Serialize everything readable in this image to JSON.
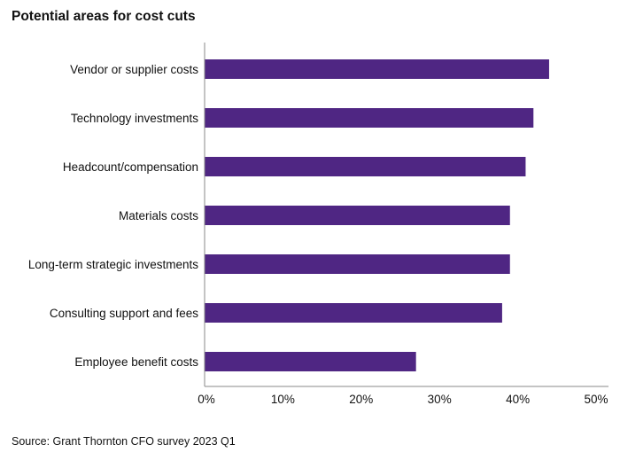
{
  "chart_data": {
    "type": "bar",
    "orientation": "horizontal",
    "title": "Potential areas for cost cuts",
    "categories": [
      "Vendor or supplier costs",
      "Technology investments",
      "Headcount/compensation",
      "Materials costs",
      "Long-term strategic investments",
      "Consulting support and fees",
      "Employee benefit costs"
    ],
    "values": [
      44,
      42,
      41,
      39,
      39,
      38,
      27
    ],
    "unit": "%",
    "xlim": [
      0,
      50
    ],
    "xticks": [
      "0%",
      "10%",
      "20%",
      "30%",
      "40%",
      "50%"
    ],
    "xlabel": "",
    "ylabel": "",
    "grid": false,
    "bar_color": "#4f2683",
    "source": "Source: Grant Thornton CFO survey 2023 Q1"
  }
}
